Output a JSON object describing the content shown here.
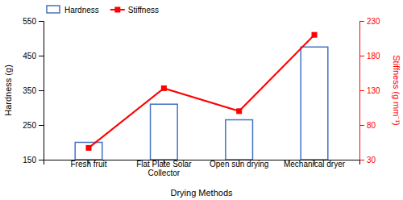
{
  "chart_data": {
    "type": "bar",
    "categories": [
      "Fresh fruit",
      "Flat Plate Solar\nCollector",
      "Open sun drying",
      "Mechanical dryer"
    ],
    "xlabel": "Drying Methods",
    "ylabel": "Hardness (g)",
    "y2label": "Stiffness (g mm⁻¹)",
    "ylim": [
      150,
      550
    ],
    "yticks": [
      150,
      250,
      350,
      450,
      550
    ],
    "y2lim": [
      30,
      230
    ],
    "y2ticks": [
      30,
      80,
      130,
      180,
      230
    ],
    "legend": "upper left",
    "series": [
      {
        "name": "Hardness",
        "type": "bar",
        "color": "#4472C4",
        "values": [
          200,
          310,
          265,
          475
        ]
      },
      {
        "name": "Stiffness",
        "type": "line",
        "axis": "y2",
        "color": "#FF0000",
        "marker": "square",
        "values": [
          47,
          133,
          100,
          210
        ]
      }
    ]
  }
}
